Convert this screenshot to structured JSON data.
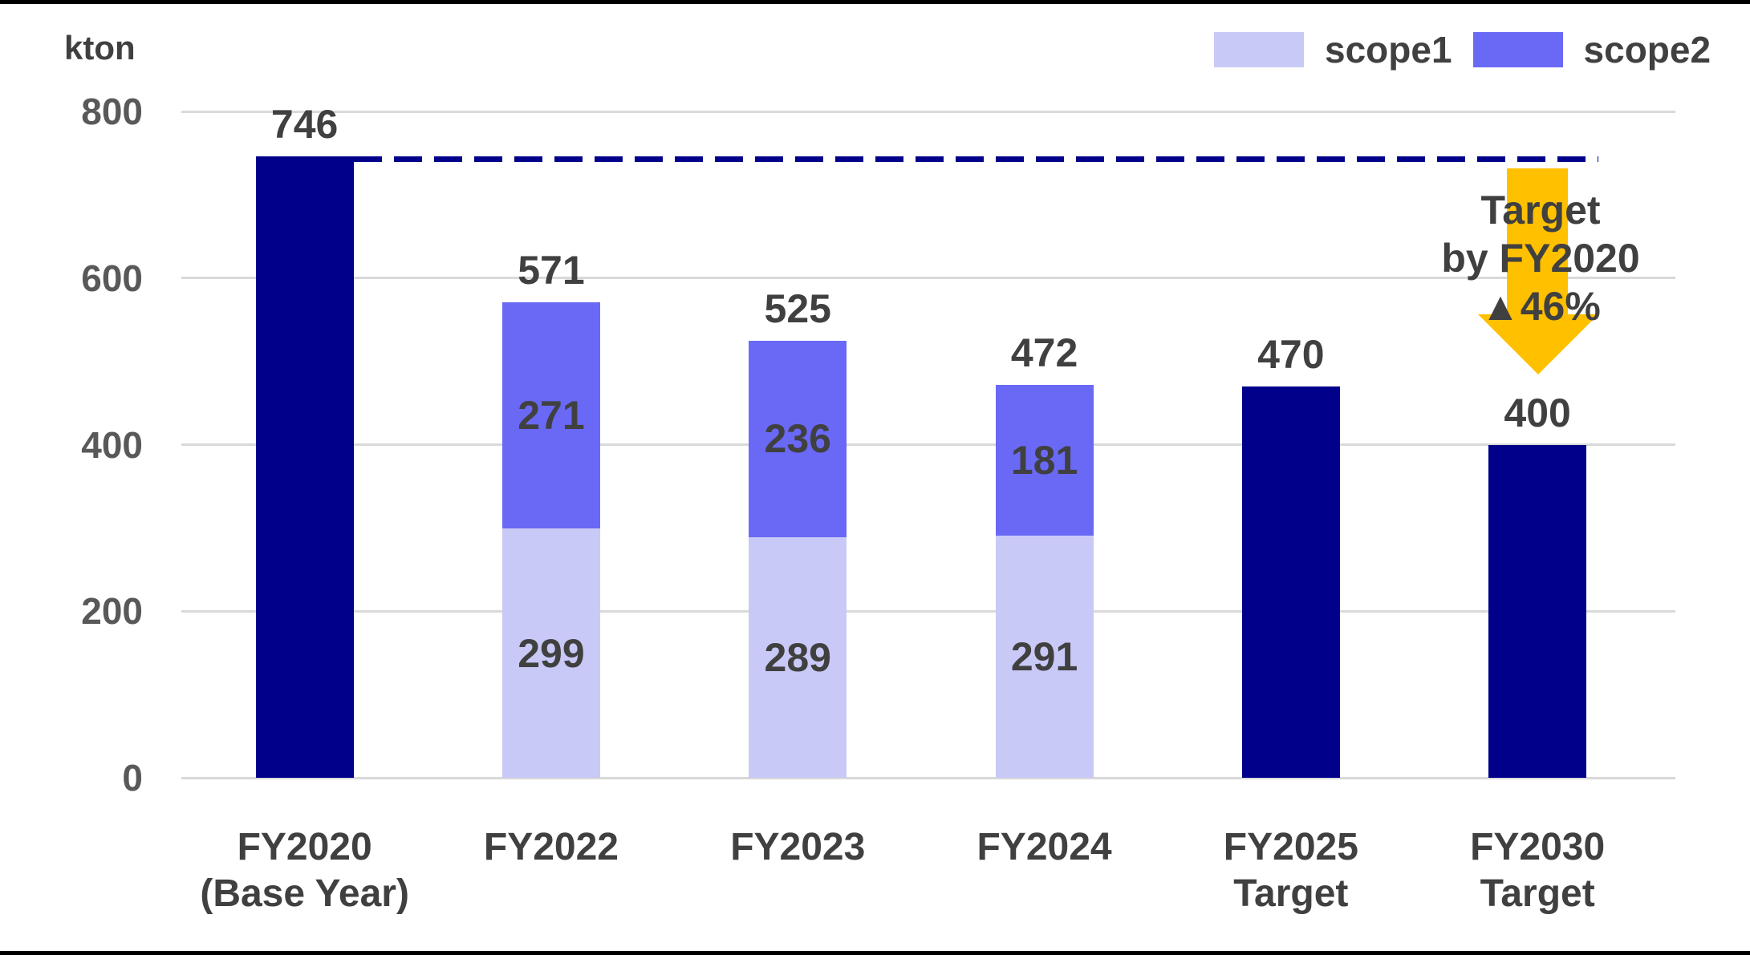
{
  "page": {
    "unit_label": "kton"
  },
  "colors": {
    "navy": "#00008B",
    "scope1": "#C9C9F7",
    "scope2": "#6969F5",
    "grid": "#D9D9D9",
    "text": "#404040",
    "tick_text": "#595959",
    "arrow": "#FFC000",
    "dashed": "#00008B",
    "rule": "#000000"
  },
  "legend": {
    "items": [
      {
        "label": "scope1",
        "color_key": "scope1"
      },
      {
        "label": "scope2",
        "color_key": "scope2"
      }
    ]
  },
  "annotation": {
    "line1": "Target",
    "line2": "by FY2020",
    "line3": "▲46%"
  },
  "chart_data": {
    "type": "bar",
    "stacked": true,
    "unit": "kton",
    "ylabel": "kton",
    "ylim": [
      0,
      800
    ],
    "yticks": [
      0,
      200,
      400,
      600,
      800
    ],
    "grid": true,
    "legend_position": "top-right",
    "legend_entries": [
      "scope1",
      "scope2"
    ],
    "categories": [
      "FY2020 (Base Year)",
      "FY2022",
      "FY2023",
      "FY2024",
      "FY2025 Target",
      "FY2030 Target"
    ],
    "series_note": "FY2020 base-year bar and the two target bars are shown as single navy totals; FY2022-FY2024 are stacked scope1 (bottom) + scope2 (top)",
    "bars": [
      {
        "category_lines": [
          "FY2020",
          "(Base Year)"
        ],
        "total": 746,
        "total_label": "746",
        "segments": [
          {
            "series": "total",
            "value": 746,
            "color_key": "navy",
            "label": null
          }
        ]
      },
      {
        "category_lines": [
          "FY2022"
        ],
        "total": 571,
        "total_label": "571",
        "segments": [
          {
            "series": "scope1",
            "value": 299,
            "color_key": "scope1",
            "label": "299"
          },
          {
            "series": "scope2",
            "value": 271,
            "color_key": "scope2",
            "label": "271"
          }
        ]
      },
      {
        "category_lines": [
          "FY2023"
        ],
        "total": 525,
        "total_label": "525",
        "segments": [
          {
            "series": "scope1",
            "value": 289,
            "color_key": "scope1",
            "label": "289"
          },
          {
            "series": "scope2",
            "value": 236,
            "color_key": "scope2",
            "label": "236"
          }
        ]
      },
      {
        "category_lines": [
          "FY2024"
        ],
        "total": 472,
        "total_label": "472",
        "segments": [
          {
            "series": "scope1",
            "value": 291,
            "color_key": "scope1",
            "label": "291"
          },
          {
            "series": "scope2",
            "value": 181,
            "color_key": "scope2",
            "label": "181"
          }
        ]
      },
      {
        "category_lines": [
          "FY2025",
          "Target"
        ],
        "total": 470,
        "total_label": "470",
        "segments": [
          {
            "series": "target",
            "value": 470,
            "color_key": "navy",
            "label": null
          }
        ]
      },
      {
        "category_lines": [
          "FY2030",
          "Target"
        ],
        "total": 400,
        "total_label": "400",
        "segments": [
          {
            "series": "target",
            "value": 400,
            "color_key": "navy",
            "label": null
          }
        ]
      }
    ],
    "reference_line": {
      "value": 746,
      "style": "dashed",
      "color_key": "dashed",
      "meaning": "FY2020 base-year level"
    }
  }
}
